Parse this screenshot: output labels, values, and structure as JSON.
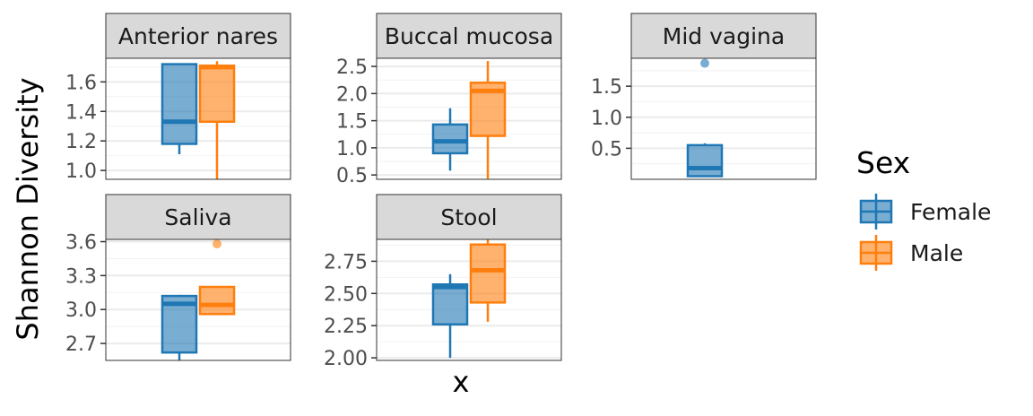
{
  "chart_data": {
    "type": "box",
    "ylabel": "Shannon Diversity",
    "xlabel": "x",
    "legend": {
      "title": "Sex",
      "placement": "right",
      "entries": [
        "Female",
        "Male"
      ]
    },
    "colors": {
      "Female": "#1f77b4",
      "Male": "#ff7f0e",
      "strip_bg": "#d9d9d9",
      "grid": "#ebebeb"
    },
    "panels": [
      {
        "title": "Anterior nares",
        "ylim": [
          0.94,
          1.76
        ],
        "yticks": [
          1.0,
          1.2,
          1.4,
          1.6
        ],
        "tick_labels": [
          "1.0",
          "1.2",
          "1.4",
          "1.6"
        ],
        "boxes": {
          "Female": {
            "min": 1.11,
            "q1": 1.18,
            "median": 1.33,
            "q3": 1.72,
            "max": 1.72,
            "outliers": []
          },
          "Male": {
            "min": 0.94,
            "q1": 1.33,
            "median": 1.7,
            "q3": 1.71,
            "max": 1.74,
            "outliers": []
          }
        }
      },
      {
        "title": "Buccal mucosa",
        "ylim": [
          0.42,
          2.65
        ],
        "yticks": [
          0.5,
          1.0,
          1.5,
          2.0,
          2.5
        ],
        "tick_labels": [
          "0.5",
          "1.0",
          "1.5",
          "2.0",
          "2.5"
        ],
        "boxes": {
          "Female": {
            "min": 0.58,
            "q1": 0.9,
            "median": 1.12,
            "q3": 1.43,
            "max": 1.73,
            "outliers": []
          },
          "Male": {
            "min": 0.43,
            "q1": 1.22,
            "median": 2.05,
            "q3": 2.2,
            "max": 2.6,
            "outliers": []
          }
        }
      },
      {
        "title": "Mid vagina",
        "ylim": [
          0.0,
          1.95
        ],
        "yticks": [
          0.5,
          1.0,
          1.5
        ],
        "tick_labels": [
          "0.5",
          "1.0",
          "1.5"
        ],
        "boxes": {
          "Female": {
            "min": 0.05,
            "q1": 0.05,
            "median": 0.18,
            "q3": 0.55,
            "max": 0.58,
            "outliers": [
              1.87
            ]
          }
        }
      },
      {
        "title": "Saliva",
        "ylim": [
          2.55,
          3.62
        ],
        "yticks": [
          2.7,
          3.0,
          3.3,
          3.6
        ],
        "tick_labels": [
          "2.7",
          "3.0",
          "3.3",
          "3.6"
        ],
        "boxes": {
          "Female": {
            "min": 2.55,
            "q1": 2.62,
            "median": 3.05,
            "q3": 3.12,
            "max": 3.13,
            "outliers": []
          },
          "Male": {
            "min": 2.96,
            "q1": 2.96,
            "median": 3.04,
            "q3": 3.2,
            "max": 3.2,
            "outliers": [
              3.58
            ]
          }
        }
      },
      {
        "title": "Stool",
        "ylim": [
          1.98,
          2.92
        ],
        "yticks": [
          2.0,
          2.25,
          2.5,
          2.75
        ],
        "tick_labels": [
          "2.00",
          "2.25",
          "2.50",
          "2.75"
        ],
        "boxes": {
          "Female": {
            "min": 2.0,
            "q1": 2.26,
            "median": 2.55,
            "q3": 2.57,
            "max": 2.65,
            "outliers": []
          },
          "Male": {
            "min": 2.28,
            "q1": 2.43,
            "median": 2.68,
            "q3": 2.88,
            "max": 2.92,
            "outliers": []
          }
        }
      }
    ]
  }
}
